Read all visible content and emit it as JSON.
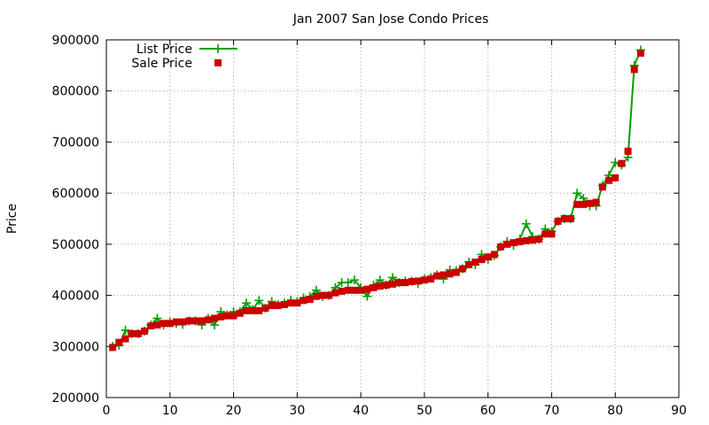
{
  "chart_data": {
    "type": "line",
    "title": "Jan 2007 San Jose Condo Prices",
    "xlabel": "",
    "ylabel": "Price",
    "xlim": [
      0,
      90
    ],
    "ylim": [
      200000,
      900000
    ],
    "xticks": [
      0,
      10,
      20,
      30,
      40,
      50,
      60,
      70,
      80,
      90
    ],
    "yticks": [
      200000,
      300000,
      400000,
      500000,
      600000,
      700000,
      800000,
      900000
    ],
    "grid": true,
    "legend_position": "top-left",
    "series": [
      {
        "name": "List Price",
        "color": "#00a000",
        "marker": "plus",
        "line": true,
        "x": [
          1,
          2,
          3,
          4,
          5,
          6,
          7,
          8,
          9,
          10,
          11,
          12,
          13,
          14,
          15,
          16,
          17,
          18,
          19,
          20,
          21,
          22,
          23,
          24,
          25,
          26,
          27,
          28,
          29,
          30,
          31,
          32,
          33,
          34,
          35,
          36,
          37,
          38,
          39,
          40,
          41,
          42,
          43,
          44,
          45,
          46,
          47,
          48,
          49,
          50,
          51,
          52,
          53,
          54,
          55,
          56,
          57,
          58,
          59,
          60,
          61,
          62,
          63,
          64,
          65,
          66,
          67,
          68,
          69,
          70,
          71,
          72,
          73,
          74,
          75,
          76,
          77,
          78,
          79,
          80,
          81,
          82,
          83,
          84
        ],
        "y": [
          300000,
          302000,
          332000,
          325000,
          325000,
          330000,
          342000,
          355000,
          342000,
          348000,
          345000,
          343000,
          350000,
          350000,
          342000,
          355000,
          342000,
          368000,
          362000,
          368000,
          368000,
          385000,
          372000,
          390000,
          375000,
          388000,
          382000,
          385000,
          390000,
          388000,
          395000,
          398000,
          410000,
          398000,
          400000,
          415000,
          425000,
          425000,
          430000,
          415000,
          398000,
          420000,
          430000,
          420000,
          435000,
          425000,
          428000,
          428000,
          423000,
          432000,
          435000,
          440000,
          432000,
          450000,
          448000,
          452000,
          465000,
          460000,
          480000,
          470000,
          478000,
          495000,
          505000,
          498000,
          510000,
          540000,
          515000,
          510000,
          530000,
          525000,
          545000,
          550000,
          550000,
          600000,
          590000,
          575000,
          575000,
          615000,
          635000,
          660000,
          655000,
          670000,
          850000,
          880000
        ]
      },
      {
        "name": "Sale Price",
        "color": "#cc0000",
        "marker": "square",
        "line": false,
        "x": [
          1,
          2,
          3,
          4,
          5,
          6,
          7,
          8,
          9,
          10,
          11,
          12,
          13,
          14,
          15,
          16,
          17,
          18,
          19,
          20,
          21,
          22,
          23,
          24,
          25,
          26,
          27,
          28,
          29,
          30,
          31,
          32,
          33,
          34,
          35,
          36,
          37,
          38,
          39,
          40,
          41,
          42,
          43,
          44,
          45,
          46,
          47,
          48,
          49,
          50,
          51,
          52,
          53,
          54,
          55,
          56,
          57,
          58,
          59,
          60,
          61,
          62,
          63,
          64,
          65,
          66,
          67,
          68,
          69,
          70,
          71,
          72,
          73,
          74,
          75,
          76,
          77,
          78,
          79,
          80,
          81,
          82,
          83,
          84
        ],
        "y": [
          298000,
          308000,
          315000,
          325000,
          325000,
          330000,
          340000,
          342000,
          345000,
          345000,
          348000,
          348000,
          350000,
          350000,
          350000,
          352000,
          355000,
          358000,
          360000,
          360000,
          365000,
          370000,
          370000,
          370000,
          375000,
          380000,
          380000,
          382000,
          385000,
          385000,
          390000,
          392000,
          398000,
          400000,
          400000,
          405000,
          408000,
          410000,
          410000,
          410000,
          412000,
          415000,
          418000,
          420000,
          422000,
          425000,
          425000,
          427000,
          428000,
          430000,
          432000,
          438000,
          440000,
          442000,
          445000,
          452000,
          460000,
          465000,
          470000,
          475000,
          480000,
          495000,
          500000,
          503000,
          505000,
          507000,
          508000,
          510000,
          520000,
          520000,
          545000,
          550000,
          550000,
          578000,
          578000,
          580000,
          582000,
          612000,
          625000,
          630000,
          658000,
          682000,
          842000,
          874000
        ]
      }
    ]
  }
}
